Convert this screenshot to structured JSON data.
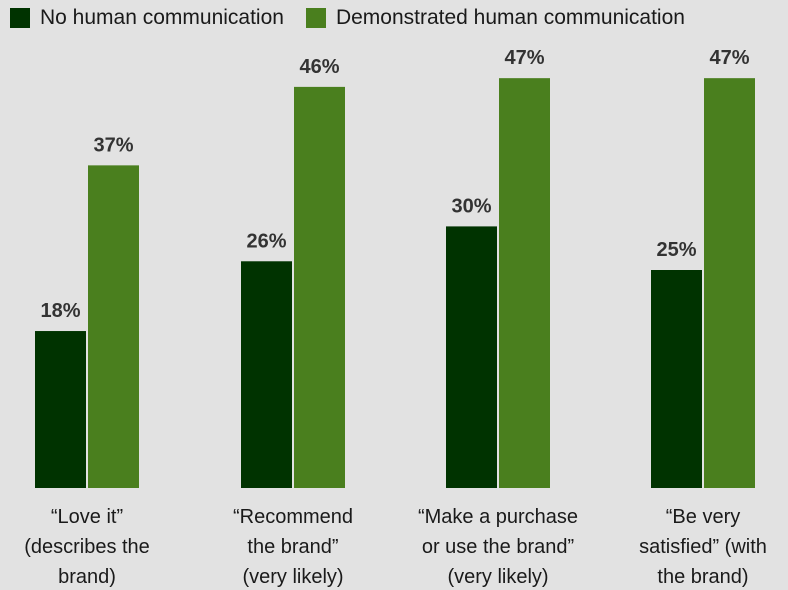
{
  "chart_data": {
    "type": "bar",
    "categories": [
      [
        "“Love it”",
        "(describes the",
        "brand)"
      ],
      [
        "“Recommend",
        "the brand”",
        "(very likely)"
      ],
      [
        "“Make a purchase",
        "or use the brand”",
        "(very likely)"
      ],
      [
        "“Be very",
        "satisfied” (with",
        "the brand)"
      ]
    ],
    "series": [
      {
        "name": "No human communication",
        "color": "#003300",
        "values": [
          18,
          26,
          30,
          25
        ],
        "labels": [
          "18%",
          "26%",
          "30%",
          "25%"
        ]
      },
      {
        "name": "Demonstrated human communication",
        "color": "#4a7f1e",
        "values": [
          37,
          46,
          47,
          47
        ],
        "labels": [
          "37%",
          "46%",
          "47%",
          "47%"
        ]
      }
    ],
    "ylim": [
      0,
      50
    ],
    "grid": false,
    "legend_position": "top",
    "title": "",
    "xlabel": "",
    "ylabel": ""
  }
}
